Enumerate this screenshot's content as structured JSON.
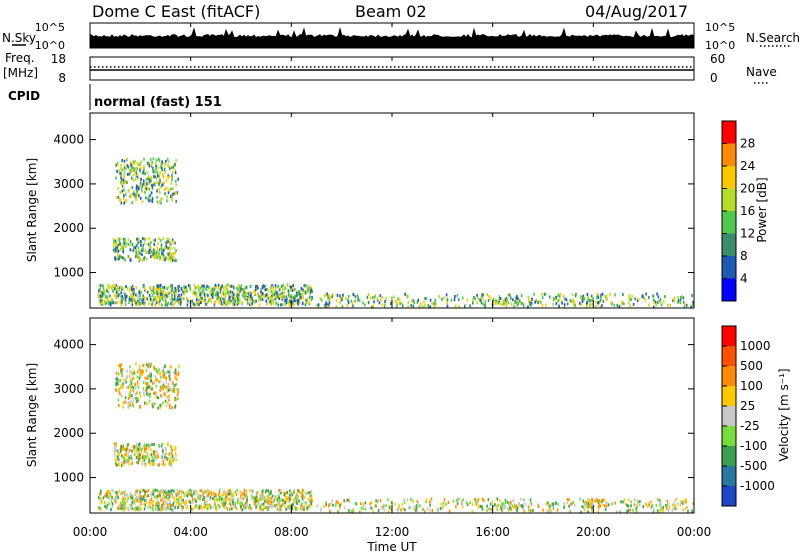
{
  "header": {
    "station": "Dome C East (fitACF)",
    "beam": "Beam 02",
    "date": "04/Aug/2017"
  },
  "top_panels": {
    "nsky_label": "N.Sky",
    "nsearch_label": "N.Search",
    "nsky_ticks": [
      "10^5",
      "10^0"
    ],
    "nsearch_ticks": [
      "10^5",
      "10^0"
    ],
    "freq_label": "Freq.",
    "freq_unit": "[MHz]",
    "freq_ticks": [
      "18",
      "8"
    ],
    "nave_label": "Nave",
    "nave_ticks": [
      "60",
      "0"
    ],
    "cpid_label": "CPID",
    "cpid_value": "normal (fast) 151"
  },
  "chart_data": [
    {
      "type": "heatmap",
      "panel": "power",
      "ylabel": "Slant Range [km]",
      "y_ticks": [
        1000,
        2000,
        3000,
        4000
      ],
      "ylim": [
        200,
        4600
      ],
      "colorbar_label": "Power [dB]",
      "colorbar_ticks": [
        "4",
        "8",
        "12",
        "16",
        "20",
        "24",
        "28"
      ],
      "colorbar_colors": [
        "#0000ff",
        "#1e5ab4",
        "#3c8c6e",
        "#50c850",
        "#b4dc28",
        "#ffc800",
        "#ff8c00",
        "#ff0000"
      ],
      "regions": [
        {
          "t0": 0.9,
          "t1": 3.4,
          "r0": 1300,
          "r1": 1800,
          "level": 0.45
        },
        {
          "t0": 0.3,
          "t1": 8.8,
          "r0": 300,
          "r1": 750,
          "level": 0.55
        },
        {
          "t0": 1.0,
          "t1": 3.5,
          "r0": 2600,
          "r1": 3600,
          "level": 0.3
        },
        {
          "t0": 16.0,
          "t1": 17.2,
          "r0": 300,
          "r1": 450,
          "level": 0.35
        },
        {
          "t0": 19.5,
          "t1": 20.5,
          "r0": 350,
          "r1": 550,
          "level": 0.35
        },
        {
          "t0": 9.0,
          "t1": 24.0,
          "r0": 250,
          "r1": 550,
          "level": 0.2
        }
      ]
    },
    {
      "type": "heatmap",
      "panel": "velocity",
      "ylabel": "Slant Range [km]",
      "y_ticks": [
        1000,
        2000,
        3000,
        4000
      ],
      "ylim": [
        200,
        4600
      ],
      "colorbar_label": "Velocity [m s⁻¹]",
      "colorbar_ticks": [
        "1000",
        "500",
        "100",
        "25",
        "-25",
        "-100",
        "-500",
        "-1000"
      ],
      "colorbar_colors": [
        "#1e46c8",
        "#2878a0",
        "#3ca050",
        "#78dc3c",
        "#c8c8c8",
        "#ffc800",
        "#ff8c00",
        "#ff5000",
        "#ff0000"
      ],
      "regions": [
        {
          "t0": 0.9,
          "t1": 3.4,
          "r0": 1300,
          "r1": 1800,
          "level": 0.45
        },
        {
          "t0": 0.3,
          "t1": 8.8,
          "r0": 300,
          "r1": 750,
          "level": 0.55
        },
        {
          "t0": 1.0,
          "t1": 3.5,
          "r0": 2600,
          "r1": 3600,
          "level": 0.3
        },
        {
          "t0": 16.0,
          "t1": 17.2,
          "r0": 300,
          "r1": 450,
          "level": 0.35
        },
        {
          "t0": 19.5,
          "t1": 20.5,
          "r0": 350,
          "r1": 550,
          "level": 0.35
        },
        {
          "t0": 9.0,
          "t1": 24.0,
          "r0": 250,
          "r1": 550,
          "level": 0.2
        }
      ]
    }
  ],
  "time_axis": {
    "ticks": [
      "00:00",
      "04:00",
      "08:00",
      "12:00",
      "16:00",
      "20:00",
      "00:00"
    ],
    "label": "Time UT",
    "xlim": [
      0,
      24
    ]
  }
}
